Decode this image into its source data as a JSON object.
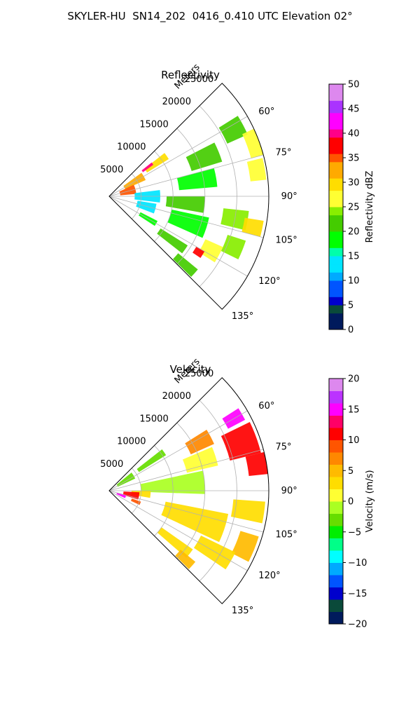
{
  "title": "SKYLER-HU  SN14_202  0416_0.410 UTC Elevation 02°",
  "chart_data": [
    {
      "type": "heatmap",
      "projection": "polar-sector",
      "title": "Reflectivity",
      "range_label": "Meters",
      "range_ticks": [
        5000,
        10000,
        15000,
        20000,
        25000
      ],
      "range_tick_labels": [
        "5000",
        "10000",
        "15000",
        "20000",
        "25000"
      ],
      "max_range": 25000,
      "azimuth_range": [
        45,
        135
      ],
      "azimuth_ticks": [
        60,
        75,
        90,
        105,
        120,
        135
      ],
      "azimuth_tick_labels": [
        "60°",
        "75°",
        "90°",
        "105°",
        "120°",
        "135°"
      ],
      "grid": true,
      "colorbar": {
        "label": "Reflectivity dBZ",
        "min": 0,
        "max": 50,
        "ticks": [
          0,
          5,
          10,
          15,
          20,
          25,
          30,
          35,
          40,
          45,
          50
        ],
        "tick_labels": [
          "0",
          "5",
          "10",
          "15",
          "20",
          "25",
          "30",
          "35",
          "40",
          "45",
          "50"
        ]
      },
      "cells": [
        {
          "az": 62,
          "r": 22000,
          "daz": 8,
          "dr": 3500,
          "v": 22
        },
        {
          "az": 70,
          "r": 24000,
          "daz": 10,
          "dr": 2000,
          "v": 27
        },
        {
          "az": 80,
          "r": 23500,
          "daz": 8,
          "dr": 2500,
          "v": 26
        },
        {
          "az": 68,
          "r": 16000,
          "daz": 10,
          "dr": 5000,
          "v": 21
        },
        {
          "az": 80,
          "r": 14000,
          "daz": 10,
          "dr": 6000,
          "v": 19
        },
        {
          "az": 55,
          "r": 9000,
          "daz": 6,
          "dr": 4000,
          "v": 28
        },
        {
          "az": 53,
          "r": 7500,
          "daz": 3,
          "dr": 2000,
          "v": 40
        },
        {
          "az": 60,
          "r": 4500,
          "daz": 12,
          "dr": 3500,
          "v": 33
        },
        {
          "az": 75,
          "r": 3000,
          "daz": 20,
          "dr": 2500,
          "v": 35
        },
        {
          "az": 90,
          "r": 6000,
          "daz": 14,
          "dr": 4000,
          "v": 13
        },
        {
          "az": 95,
          "r": 12000,
          "daz": 10,
          "dr": 6000,
          "v": 20
        },
        {
          "az": 100,
          "r": 20000,
          "daz": 8,
          "dr": 4000,
          "v": 23
        },
        {
          "az": 102,
          "r": 23000,
          "daz": 6,
          "dr": 3000,
          "v": 30
        },
        {
          "az": 108,
          "r": 13000,
          "daz": 12,
          "dr": 6000,
          "v": 18
        },
        {
          "az": 112,
          "r": 21000,
          "daz": 8,
          "dr": 3000,
          "v": 24
        },
        {
          "az": 118,
          "r": 18000,
          "daz": 8,
          "dr": 3000,
          "v": 27
        },
        {
          "az": 122,
          "r": 16500,
          "daz": 4,
          "dr": 1500,
          "v": 36
        },
        {
          "az": 125,
          "r": 12000,
          "daz": 6,
          "dr": 5000,
          "v": 21
        },
        {
          "az": 132,
          "r": 16000,
          "daz": 5,
          "dr": 4000,
          "v": 22
        },
        {
          "az": 105,
          "r": 6000,
          "daz": 12,
          "dr": 3000,
          "v": 14
        },
        {
          "az": 120,
          "r": 7000,
          "daz": 6,
          "dr": 3000,
          "v": 17
        }
      ]
    },
    {
      "type": "heatmap",
      "projection": "polar-sector",
      "title": "Velocity",
      "range_label": "Meters",
      "range_ticks": [
        5000,
        10000,
        15000,
        20000,
        25000
      ],
      "range_tick_labels": [
        "5000",
        "10000",
        "15000",
        "20000",
        "25000"
      ],
      "max_range": 25000,
      "azimuth_range": [
        45,
        135
      ],
      "azimuth_ticks": [
        60,
        75,
        90,
        105,
        120,
        135
      ],
      "azimuth_tick_labels": [
        "60°",
        "75°",
        "90°",
        "105°",
        "120°",
        "135°"
      ],
      "grid": true,
      "colorbar": {
        "label": "Velocity (m/s)",
        "min": -20,
        "max": 20,
        "ticks": [
          -20,
          -15,
          -10,
          -5,
          0,
          5,
          10,
          15,
          20
        ],
        "tick_labels": [
          "−20",
          "−15",
          "−10",
          "−5",
          "0",
          "5",
          "10",
          "15",
          "20"
        ]
      },
      "cells": [
        {
          "az": 60,
          "r": 22500,
          "daz": 5,
          "dr": 3000,
          "v": 15
        },
        {
          "az": 70,
          "r": 22000,
          "daz": 12,
          "dr": 5000,
          "v": 10
        },
        {
          "az": 80,
          "r": 23500,
          "daz": 8,
          "dr": 3000,
          "v": 10
        },
        {
          "az": 62,
          "r": 16000,
          "daz": 8,
          "dr": 4000,
          "v": 6
        },
        {
          "az": 72,
          "r": 15000,
          "daz": 10,
          "dr": 5000,
          "v": 0
        },
        {
          "az": 55,
          "r": 8000,
          "daz": 6,
          "dr": 5000,
          "v": -3
        },
        {
          "az": 58,
          "r": 3000,
          "daz": 14,
          "dr": 3000,
          "v": -3
        },
        {
          "az": 85,
          "r": 10000,
          "daz": 14,
          "dr": 10000,
          "v": -1
        },
        {
          "az": 95,
          "r": 5000,
          "daz": 10,
          "dr": 3000,
          "v": 3
        },
        {
          "az": 98,
          "r": 22000,
          "daz": 8,
          "dr": 5000,
          "v": 3
        },
        {
          "az": 108,
          "r": 14000,
          "daz": 14,
          "dr": 10000,
          "v": 2
        },
        {
          "az": 112,
          "r": 23000,
          "daz": 10,
          "dr": 3000,
          "v": 5
        },
        {
          "az": 120,
          "r": 19000,
          "daz": 8,
          "dr": 6000,
          "v": 3
        },
        {
          "az": 128,
          "r": 13000,
          "daz": 6,
          "dr": 6000,
          "v": 3
        },
        {
          "az": 132,
          "r": 16000,
          "daz": 5,
          "dr": 3000,
          "v": 4
        },
        {
          "az": 100,
          "r": 3500,
          "daz": 14,
          "dr": 2500,
          "v": 10
        },
        {
          "az": 110,
          "r": 2000,
          "daz": 10,
          "dr": 1500,
          "v": 15
        },
        {
          "az": 112,
          "r": 4500,
          "daz": 6,
          "dr": 1500,
          "v": 9
        }
      ]
    }
  ]
}
